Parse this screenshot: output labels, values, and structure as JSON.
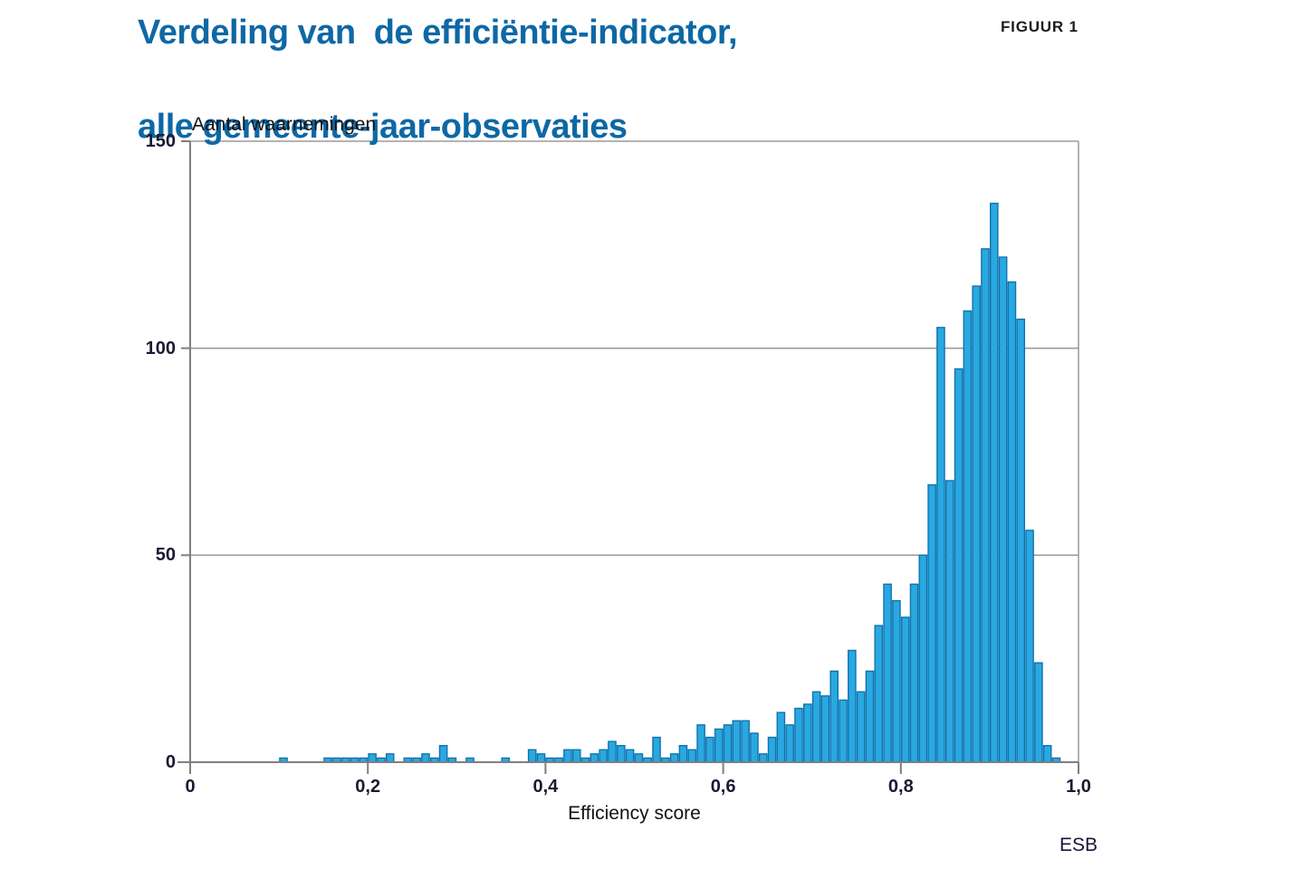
{
  "figure": {
    "title_line1": "Verdeling van  de efficiëntie-indicator,",
    "title_line2": "alle gemeente-jaar-observaties",
    "figure_label": "FIGUUR 1",
    "source_label": "ESB"
  },
  "colors": {
    "title_blue": "#0d68a5",
    "bar_fill": "#29a9e1",
    "bar_border": "#1272ad",
    "gridline": "#9b9b9b",
    "axis_line": "#7f7f7f",
    "frame_line": "#b3b3b3",
    "tick_text": "#1a1a33"
  },
  "chart_data": {
    "type": "bar",
    "subtype": "histogram",
    "title": "Verdeling van de efficiëntie-indicator, alle gemeente-jaar-observaties",
    "xlabel": "Efficiency score",
    "ylabel": "Aantal waarnemingen",
    "xlim": [
      0,
      1.0
    ],
    "ylim": [
      0,
      150
    ],
    "bin_width": 0.01,
    "grid": "horizontal gridlines at 50 and 100, full frame top/right",
    "legend": "none",
    "x_ticks": [
      {
        "value": 0.0,
        "label": "0"
      },
      {
        "value": 0.2,
        "label": "0,2"
      },
      {
        "value": 0.4,
        "label": "0,4"
      },
      {
        "value": 0.6,
        "label": "0,6"
      },
      {
        "value": 0.8,
        "label": "0,8"
      },
      {
        "value": 1.0,
        "label": "1,0"
      }
    ],
    "y_ticks": [
      {
        "value": 0,
        "label": "0"
      },
      {
        "value": 50,
        "label": "50"
      },
      {
        "value": 100,
        "label": "100"
      },
      {
        "value": 150,
        "label": "150"
      }
    ],
    "bins": [
      {
        "x": 0.1,
        "count": 1
      },
      {
        "x": 0.15,
        "count": 1
      },
      {
        "x": 0.16,
        "count": 1
      },
      {
        "x": 0.17,
        "count": 1
      },
      {
        "x": 0.18,
        "count": 1
      },
      {
        "x": 0.19,
        "count": 1
      },
      {
        "x": 0.2,
        "count": 2
      },
      {
        "x": 0.21,
        "count": 1
      },
      {
        "x": 0.22,
        "count": 2
      },
      {
        "x": 0.24,
        "count": 1
      },
      {
        "x": 0.25,
        "count": 1
      },
      {
        "x": 0.26,
        "count": 2
      },
      {
        "x": 0.27,
        "count": 1
      },
      {
        "x": 0.28,
        "count": 4
      },
      {
        "x": 0.29,
        "count": 1
      },
      {
        "x": 0.31,
        "count": 1
      },
      {
        "x": 0.35,
        "count": 1
      },
      {
        "x": 0.38,
        "count": 3
      },
      {
        "x": 0.39,
        "count": 2
      },
      {
        "x": 0.4,
        "count": 1
      },
      {
        "x": 0.41,
        "count": 1
      },
      {
        "x": 0.42,
        "count": 3
      },
      {
        "x": 0.43,
        "count": 3
      },
      {
        "x": 0.44,
        "count": 1
      },
      {
        "x": 0.45,
        "count": 2
      },
      {
        "x": 0.46,
        "count": 3
      },
      {
        "x": 0.47,
        "count": 5
      },
      {
        "x": 0.48,
        "count": 4
      },
      {
        "x": 0.49,
        "count": 3
      },
      {
        "x": 0.5,
        "count": 2
      },
      {
        "x": 0.51,
        "count": 1
      },
      {
        "x": 0.52,
        "count": 6
      },
      {
        "x": 0.53,
        "count": 1
      },
      {
        "x": 0.54,
        "count": 2
      },
      {
        "x": 0.55,
        "count": 4
      },
      {
        "x": 0.56,
        "count": 3
      },
      {
        "x": 0.57,
        "count": 9
      },
      {
        "x": 0.58,
        "count": 6
      },
      {
        "x": 0.59,
        "count": 8
      },
      {
        "x": 0.6,
        "count": 9
      },
      {
        "x": 0.61,
        "count": 10
      },
      {
        "x": 0.62,
        "count": 10
      },
      {
        "x": 0.63,
        "count": 7
      },
      {
        "x": 0.64,
        "count": 2
      },
      {
        "x": 0.65,
        "count": 6
      },
      {
        "x": 0.66,
        "count": 12
      },
      {
        "x": 0.67,
        "count": 9
      },
      {
        "x": 0.68,
        "count": 13
      },
      {
        "x": 0.69,
        "count": 14
      },
      {
        "x": 0.7,
        "count": 17
      },
      {
        "x": 0.71,
        "count": 16
      },
      {
        "x": 0.72,
        "count": 22
      },
      {
        "x": 0.73,
        "count": 15
      },
      {
        "x": 0.74,
        "count": 27
      },
      {
        "x": 0.75,
        "count": 17
      },
      {
        "x": 0.76,
        "count": 22
      },
      {
        "x": 0.77,
        "count": 33
      },
      {
        "x": 0.78,
        "count": 43
      },
      {
        "x": 0.79,
        "count": 39
      },
      {
        "x": 0.8,
        "count": 35
      },
      {
        "x": 0.81,
        "count": 43
      },
      {
        "x": 0.82,
        "count": 50
      },
      {
        "x": 0.83,
        "count": 67
      },
      {
        "x": 0.84,
        "count": 105
      },
      {
        "x": 0.85,
        "count": 68
      },
      {
        "x": 0.86,
        "count": 95
      },
      {
        "x": 0.87,
        "count": 109
      },
      {
        "x": 0.88,
        "count": 115
      },
      {
        "x": 0.89,
        "count": 124
      },
      {
        "x": 0.9,
        "count": 135
      },
      {
        "x": 0.91,
        "count": 122
      },
      {
        "x": 0.92,
        "count": 116
      },
      {
        "x": 0.93,
        "count": 107
      },
      {
        "x": 0.94,
        "count": 56
      },
      {
        "x": 0.95,
        "count": 24
      },
      {
        "x": 0.96,
        "count": 4
      },
      {
        "x": 0.97,
        "count": 1
      }
    ]
  }
}
